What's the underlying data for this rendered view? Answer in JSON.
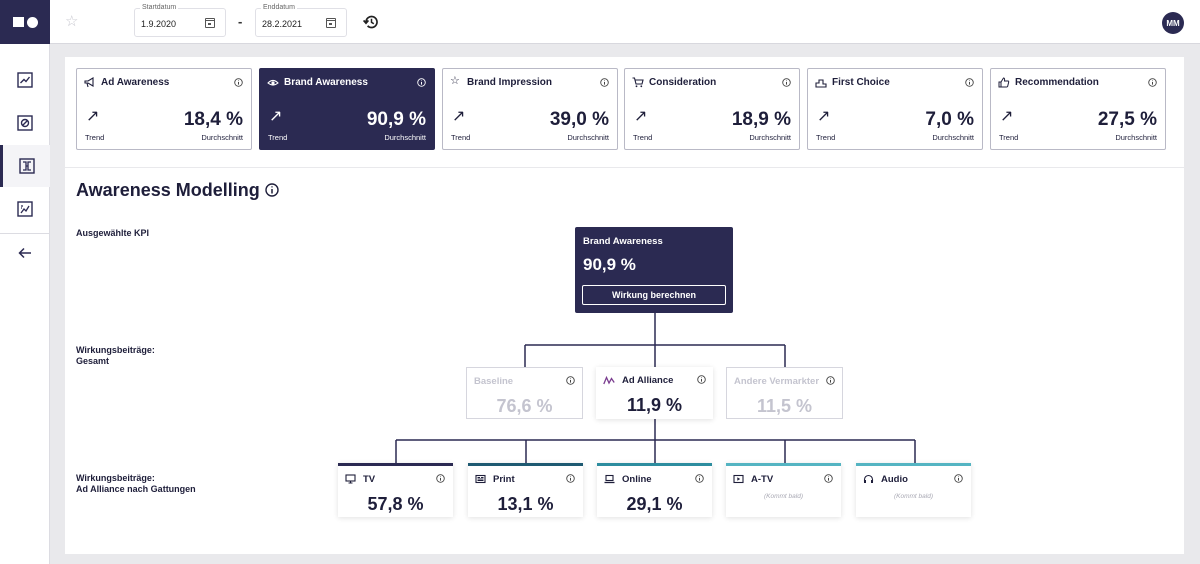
{
  "header": {
    "start_label": "Startdatum",
    "start_value": "1.9.2020",
    "date_separator": "-",
    "end_label": "Enddatum",
    "end_value": "28.2.2021",
    "user_initials": "MM"
  },
  "sidebar": {
    "items": [
      {
        "icon": "line-chart-icon"
      },
      {
        "icon": "target-icon"
      },
      {
        "icon": "modelling-icon",
        "active": true
      },
      {
        "icon": "report-chart-icon"
      },
      {
        "icon": "arrow-left-icon"
      }
    ]
  },
  "kpis": [
    {
      "name": "Ad Awareness",
      "icon": "megaphone-icon",
      "trend": "Trend",
      "value": "18,4 %",
      "avg": "Durchschnitt"
    },
    {
      "name": "Brand Awareness",
      "icon": "eye-icon",
      "trend": "Trend",
      "value": "90,9 %",
      "avg": "Durchschnitt",
      "selected": true
    },
    {
      "name": "Brand Impression",
      "icon": "star-icon",
      "trend": "Trend",
      "value": "39,0 %",
      "avg": "Durchschnitt"
    },
    {
      "name": "Consideration",
      "icon": "cart-icon",
      "trend": "Trend",
      "value": "18,9 %",
      "avg": "Durchschnitt"
    },
    {
      "name": "First Choice",
      "icon": "podium-icon",
      "trend": "Trend",
      "value": "7,0 %",
      "avg": "Durchschnitt"
    },
    {
      "name": "Recommendation",
      "icon": "thumbs-up-icon",
      "trend": "Trend",
      "value": "27,5 %",
      "avg": "Durchschnitt"
    }
  ],
  "modelling": {
    "title": "Awareness Modelling",
    "label_selected": "Ausgewählte KPI",
    "label_total_1": "Wirkungsbeiträge:",
    "label_total_2": "Gesamt",
    "label_genres_1": "Wirkungsbeiträge:",
    "label_genres_2": "Ad Alliance nach Gattungen",
    "selected_kpi": {
      "name": "Brand Awareness",
      "value": "90,9 %",
      "button": "Wirkung berechnen"
    },
    "contributions": [
      {
        "name": "Baseline",
        "value": "76,6 %",
        "faded": true
      },
      {
        "name": "Ad Alliance",
        "value": "11,9 %",
        "faded": false
      },
      {
        "name": "Andere Vermarkter",
        "value": "11,5 %",
        "faded": true
      }
    ],
    "genres": [
      {
        "name": "TV",
        "value": "57,8 %",
        "color": "#2b2a52",
        "icon": "tv-icon"
      },
      {
        "name": "Print",
        "value": "13,1 %",
        "color": "#1e5a72",
        "icon": "newspaper-icon"
      },
      {
        "name": "Online",
        "value": "29,1 %",
        "color": "#2d8d9f",
        "icon": "laptop-icon"
      },
      {
        "name": "A-TV",
        "soon": "(Kommt bald)",
        "color": "#54b4c2",
        "icon": "atv-icon"
      },
      {
        "name": "Audio",
        "soon": "(Kommt bald)",
        "color": "#54b4c2",
        "icon": "headphones-icon"
      }
    ]
  }
}
